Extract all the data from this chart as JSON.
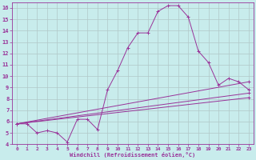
{
  "background_color": "#c8ecec",
  "grid_color": "#b0c8c8",
  "line_color": "#993399",
  "xlabel": "Windchill (Refroidissement éolien,°C)",
  "xlim": [
    -0.5,
    23.5
  ],
  "ylim": [
    4,
    16.5
  ],
  "yticks": [
    4,
    5,
    6,
    7,
    8,
    9,
    10,
    11,
    12,
    13,
    14,
    15,
    16
  ],
  "xticks": [
    0,
    1,
    2,
    3,
    4,
    5,
    6,
    7,
    8,
    9,
    10,
    11,
    12,
    13,
    14,
    15,
    16,
    17,
    18,
    19,
    20,
    21,
    22,
    23
  ],
  "main_curve": {
    "x": [
      0,
      1,
      2,
      3,
      4,
      5,
      6,
      7,
      8,
      9,
      10,
      11,
      12,
      13,
      14,
      15,
      16,
      17,
      18,
      19,
      20,
      21,
      22,
      23
    ],
    "y": [
      5.8,
      5.8,
      5.0,
      5.2,
      5.0,
      4.2,
      6.2,
      6.2,
      5.3,
      8.8,
      10.5,
      12.5,
      13.8,
      13.8,
      15.7,
      16.2,
      16.2,
      15.2,
      12.2,
      11.2,
      9.2,
      9.8,
      9.5,
      8.8
    ]
  },
  "trend_lines": [
    {
      "x": [
        0,
        7,
        8,
        23
      ],
      "y": [
        5.8,
        6.0,
        7.8,
        9.5
      ]
    },
    {
      "x": [
        0,
        7,
        8,
        23
      ],
      "y": [
        5.8,
        5.9,
        7.2,
        8.5
      ]
    },
    {
      "x": [
        0,
        7,
        8,
        23
      ],
      "y": [
        5.8,
        5.8,
        6.5,
        8.1
      ]
    }
  ]
}
